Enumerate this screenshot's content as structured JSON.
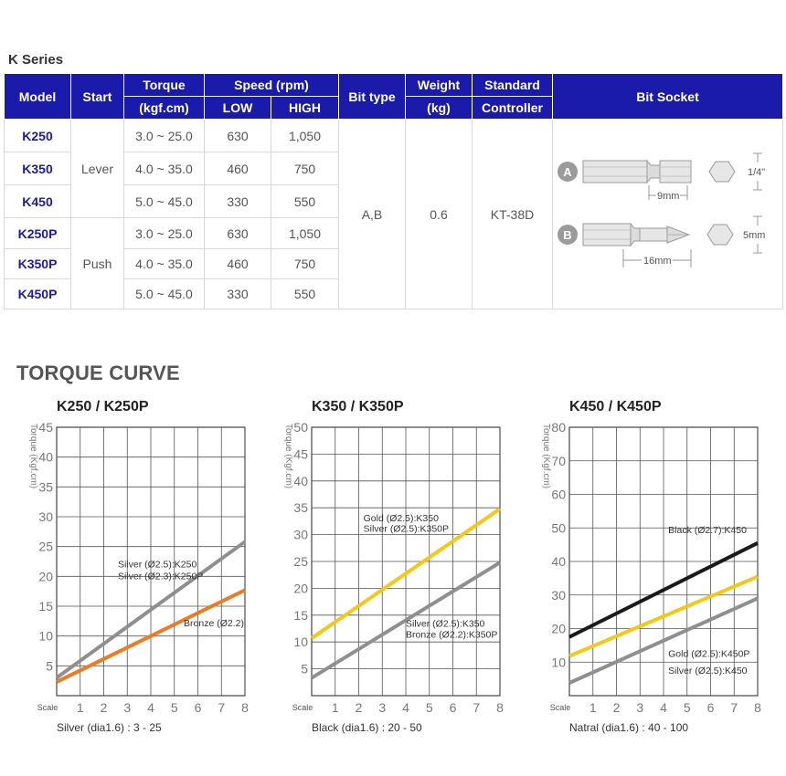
{
  "series_title": "K Series",
  "table": {
    "headers": {
      "model": "Model",
      "start": "Start",
      "torque_1": "Torque",
      "torque_2": "(kgf.cm)",
      "speed": "Speed (rpm)",
      "low": "LOW",
      "high": "HIGH",
      "bit_type": "Bit type",
      "weight_1": "Weight",
      "weight_2": "(kg)",
      "controller_1": "Standard",
      "controller_2": "Controller",
      "bit_socket": "Bit Socket"
    },
    "rows": [
      {
        "model": "K250",
        "torque": "3.0 ~ 25.0",
        "low": "630",
        "high": "1,050"
      },
      {
        "model": "K350",
        "torque": "4.0 ~ 35.0",
        "low": "460",
        "high": "750"
      },
      {
        "model": "K450",
        "torque": "5.0 ~ 45.0",
        "low": "330",
        "high": "550"
      },
      {
        "model": "K250P",
        "torque": "3.0 ~ 25.0",
        "low": "630",
        "high": "1,050"
      },
      {
        "model": "K350P",
        "torque": "4.0 ~ 35.0",
        "low": "460",
        "high": "750"
      },
      {
        "model": "K450P",
        "torque": "5.0 ~ 45.0",
        "low": "330",
        "high": "550"
      }
    ],
    "start_lever": "Lever",
    "start_push": "Push",
    "bit_type": "A,B",
    "weight": "0.6",
    "controller": "KT-38D",
    "socket": {
      "a_label": "A",
      "b_label": "B",
      "a_length": "9mm",
      "a_hex": "1/4\"",
      "b_length": "16mm",
      "b_hex": "5mm"
    }
  },
  "section_title": "TORQUE CURVE",
  "colors": {
    "header_bg": "#1a1aab",
    "silver": "#8f8f8f",
    "bronze": "#ee7a22",
    "gold": "#f5c815",
    "black": "#1a1a1a"
  },
  "chart_data": [
    {
      "type": "line",
      "title": "K250 / K250P",
      "ylabel": "Torque (Kgf.cm)",
      "xlabel": "Scale",
      "x": [
        1,
        2,
        3,
        4,
        5,
        6,
        7,
        8
      ],
      "xlim": [
        0,
        8
      ],
      "ylim": [
        0,
        45
      ],
      "yticks": [
        5,
        10,
        15,
        20,
        25,
        30,
        35,
        40,
        45
      ],
      "grid": true,
      "note": "Silver (dia1.6) : 3 - 25",
      "series": [
        {
          "color": "silver",
          "start": [
            0,
            3.0
          ],
          "end": [
            8,
            25.8
          ]
        },
        {
          "color": "bronze",
          "start": [
            0,
            2.3
          ],
          "end": [
            8,
            17.7
          ]
        }
      ],
      "annotations": [
        {
          "text": "Silver (Ø2.5):K250",
          "at": [
            2.6,
            21.5
          ]
        },
        {
          "text": "Silver (Ø2.3):K250P",
          "at": [
            2.6,
            19.5
          ]
        },
        {
          "text": "Bronze (Ø2.2)",
          "at": [
            5.4,
            11.6
          ]
        }
      ]
    },
    {
      "type": "line",
      "title": "K350 / K350P",
      "ylabel": "Torque (Kgf.cm)",
      "xlabel": "Scale",
      "x": [
        1,
        2,
        3,
        4,
        5,
        6,
        7,
        8
      ],
      "xlim": [
        0,
        8
      ],
      "ylim": [
        0,
        50
      ],
      "yticks": [
        5,
        10,
        15,
        20,
        25,
        30,
        35,
        40,
        45,
        50
      ],
      "grid": true,
      "note": "Black (dia1.6) : 20 - 50",
      "series": [
        {
          "color": "gold",
          "start": [
            0,
            10.7
          ],
          "end": [
            8,
            34.8
          ]
        },
        {
          "color": "silver",
          "start": [
            0,
            3.3
          ],
          "end": [
            8,
            24.8
          ]
        }
      ],
      "annotations": [
        {
          "text": "Gold (Ø2.5):K350",
          "at": [
            2.2,
            32.5
          ]
        },
        {
          "text": "Silver (Ø2.5):K350P",
          "at": [
            2.2,
            30.5
          ]
        },
        {
          "text": "Silver (Ø2.5):K350",
          "at": [
            4.0,
            12.8
          ]
        },
        {
          "text": "Bronze (Ø2.2):K350P",
          "at": [
            4.0,
            10.8
          ]
        }
      ]
    },
    {
      "type": "line",
      "title": "K450 / K450P",
      "ylabel": "Torque (Kgf.cm)",
      "xlabel": "Scale",
      "x": [
        1,
        2,
        3,
        4,
        5,
        6,
        7,
        8
      ],
      "xlim": [
        0,
        8
      ],
      "ylim": [
        0,
        80
      ],
      "yticks": [
        10,
        20,
        30,
        40,
        50,
        60,
        70,
        80
      ],
      "grid": true,
      "note": "Natral (dia1.6) : 40 - 100",
      "series": [
        {
          "color": "black",
          "start": [
            0,
            17.5
          ],
          "end": [
            8,
            45.5
          ]
        },
        {
          "color": "gold",
          "start": [
            0,
            11.8
          ],
          "end": [
            8,
            35.5
          ]
        },
        {
          "color": "silver",
          "start": [
            0,
            3.8
          ],
          "end": [
            8,
            29.0
          ]
        }
      ],
      "annotations": [
        {
          "text": "Black (Ø2.7):K450",
          "at": [
            4.2,
            48.5
          ]
        },
        {
          "text": "Gold (Ø2.5):K450P",
          "at": [
            4.2,
            11.5
          ]
        },
        {
          "text": "Silver (Ø2.5):K450",
          "at": [
            4.2,
            6.5
          ]
        }
      ]
    }
  ]
}
